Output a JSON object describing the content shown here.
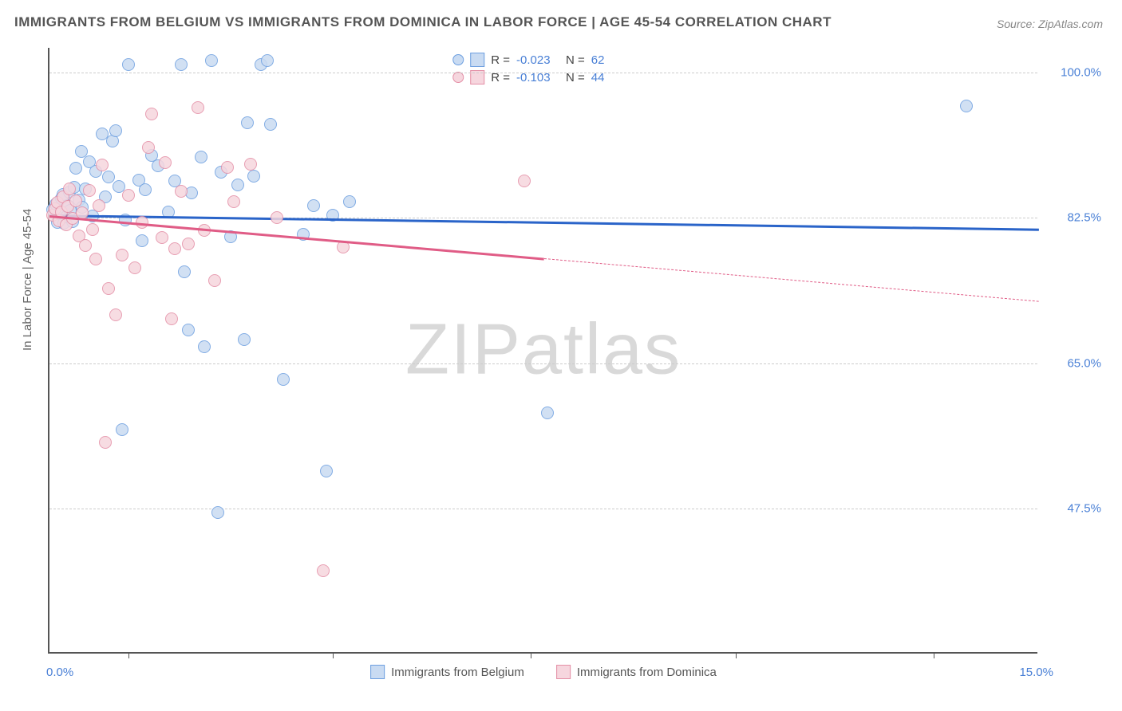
{
  "title": "IMMIGRANTS FROM BELGIUM VS IMMIGRANTS FROM DOMINICA IN LABOR FORCE | AGE 45-54 CORRELATION CHART",
  "source_label": "Source: ",
  "source_name": "ZipAtlas.com",
  "y_axis_label": "In Labor Force | Age 45-54",
  "watermark_a": "ZIP",
  "watermark_b": "atlas",
  "chart": {
    "type": "scatter",
    "background_color": "#ffffff",
    "grid_color": "#cccccc",
    "axis_color": "#555555",
    "xlim": [
      0.0,
      15.0
    ],
    "ylim": [
      30.0,
      103.0
    ],
    "x_min_label": "0.0%",
    "x_max_label": "15.0%",
    "x_tick_positions": [
      1.2,
      4.3,
      7.3,
      10.4,
      13.4
    ],
    "y_gridlines": [
      47.5,
      65.0,
      82.5,
      100.0
    ],
    "y_tick_labels": [
      "47.5%",
      "65.0%",
      "82.5%",
      "100.0%"
    ],
    "marker_radius": 8,
    "marker_border_width": 1.5,
    "regression_line_width": 3
  },
  "series": [
    {
      "key": "belgium",
      "label": "Immigrants from Belgium",
      "r": "-0.023",
      "n": "62",
      "fill": "#c9dbf2",
      "stroke": "#6d9fe0",
      "line_color": "#2a64c9",
      "reg_start": [
        0.0,
        82.9
      ],
      "reg_end": [
        15.0,
        81.2
      ],
      "dashed_from_x": null,
      "points": [
        [
          0.05,
          83.5
        ],
        [
          0.1,
          84.2
        ],
        [
          0.12,
          82.0
        ],
        [
          0.15,
          83.0
        ],
        [
          0.18,
          84.8
        ],
        [
          0.2,
          85.3
        ],
        [
          0.22,
          81.9
        ],
        [
          0.25,
          82.6
        ],
        [
          0.28,
          84.0
        ],
        [
          0.3,
          85.6
        ],
        [
          0.32,
          83.4
        ],
        [
          0.35,
          82.1
        ],
        [
          0.38,
          86.2
        ],
        [
          0.4,
          88.5
        ],
        [
          0.45,
          84.7
        ],
        [
          0.48,
          90.5
        ],
        [
          0.5,
          83.8
        ],
        [
          0.55,
          86.0
        ],
        [
          0.6,
          89.3
        ],
        [
          0.65,
          82.7
        ],
        [
          0.7,
          88.1
        ],
        [
          0.8,
          92.6
        ],
        [
          0.85,
          85.0
        ],
        [
          0.9,
          87.4
        ],
        [
          0.95,
          91.8
        ],
        [
          1.0,
          93.0
        ],
        [
          1.05,
          86.3
        ],
        [
          1.1,
          57.0
        ],
        [
          1.15,
          82.3
        ],
        [
          1.2,
          101.0
        ],
        [
          1.35,
          87.1
        ],
        [
          1.4,
          79.8
        ],
        [
          1.45,
          85.9
        ],
        [
          1.55,
          90.0
        ],
        [
          1.65,
          88.8
        ],
        [
          1.8,
          83.2
        ],
        [
          1.9,
          87.0
        ],
        [
          2.0,
          101.0
        ],
        [
          2.05,
          76.0
        ],
        [
          2.1,
          69.0
        ],
        [
          2.15,
          85.5
        ],
        [
          2.3,
          89.8
        ],
        [
          2.35,
          67.0
        ],
        [
          2.45,
          101.5
        ],
        [
          2.55,
          47.0
        ],
        [
          2.6,
          88.0
        ],
        [
          2.75,
          80.2
        ],
        [
          2.85,
          86.5
        ],
        [
          2.95,
          67.8
        ],
        [
          3.0,
          94.0
        ],
        [
          3.1,
          87.5
        ],
        [
          3.2,
          101.0
        ],
        [
          3.3,
          101.5
        ],
        [
          3.35,
          93.8
        ],
        [
          3.55,
          63.0
        ],
        [
          3.85,
          80.5
        ],
        [
          4.0,
          84.0
        ],
        [
          4.2,
          52.0
        ],
        [
          4.3,
          82.8
        ],
        [
          4.55,
          84.5
        ],
        [
          7.55,
          59.0
        ],
        [
          13.9,
          96.0
        ]
      ]
    },
    {
      "key": "dominica",
      "label": "Immigrants from Dominica",
      "r": "-0.103",
      "n": "44",
      "fill": "#f6d6de",
      "stroke": "#e48fa6",
      "line_color": "#e05c86",
      "reg_start": [
        0.0,
        82.8
      ],
      "reg_end": [
        15.0,
        72.5
      ],
      "dashed_from_x": 7.5,
      "points": [
        [
          0.05,
          82.8
        ],
        [
          0.08,
          83.6
        ],
        [
          0.12,
          84.4
        ],
        [
          0.15,
          82.2
        ],
        [
          0.18,
          83.2
        ],
        [
          0.2,
          85.0
        ],
        [
          0.25,
          81.7
        ],
        [
          0.28,
          83.9
        ],
        [
          0.3,
          86.0
        ],
        [
          0.35,
          82.4
        ],
        [
          0.4,
          84.6
        ],
        [
          0.45,
          80.3
        ],
        [
          0.5,
          83.1
        ],
        [
          0.55,
          79.2
        ],
        [
          0.6,
          85.8
        ],
        [
          0.65,
          81.1
        ],
        [
          0.7,
          77.5
        ],
        [
          0.75,
          84.0
        ],
        [
          0.8,
          88.9
        ],
        [
          0.85,
          55.5
        ],
        [
          0.9,
          74.0
        ],
        [
          1.0,
          70.8
        ],
        [
          1.1,
          78.0
        ],
        [
          1.2,
          85.2
        ],
        [
          1.3,
          76.5
        ],
        [
          1.4,
          82.0
        ],
        [
          1.5,
          91.0
        ],
        [
          1.55,
          95.0
        ],
        [
          1.7,
          80.1
        ],
        [
          1.75,
          89.2
        ],
        [
          1.85,
          70.3
        ],
        [
          1.9,
          78.8
        ],
        [
          2.0,
          85.7
        ],
        [
          2.1,
          79.4
        ],
        [
          2.25,
          95.8
        ],
        [
          2.35,
          81.0
        ],
        [
          2.5,
          75.0
        ],
        [
          2.7,
          88.6
        ],
        [
          2.8,
          84.5
        ],
        [
          3.05,
          89.0
        ],
        [
          3.45,
          82.5
        ],
        [
          4.15,
          40.0
        ],
        [
          4.45,
          79.0
        ],
        [
          7.2,
          87.0
        ]
      ]
    }
  ],
  "legend_top_labels": {
    "r": "R =",
    "n": "N ="
  }
}
